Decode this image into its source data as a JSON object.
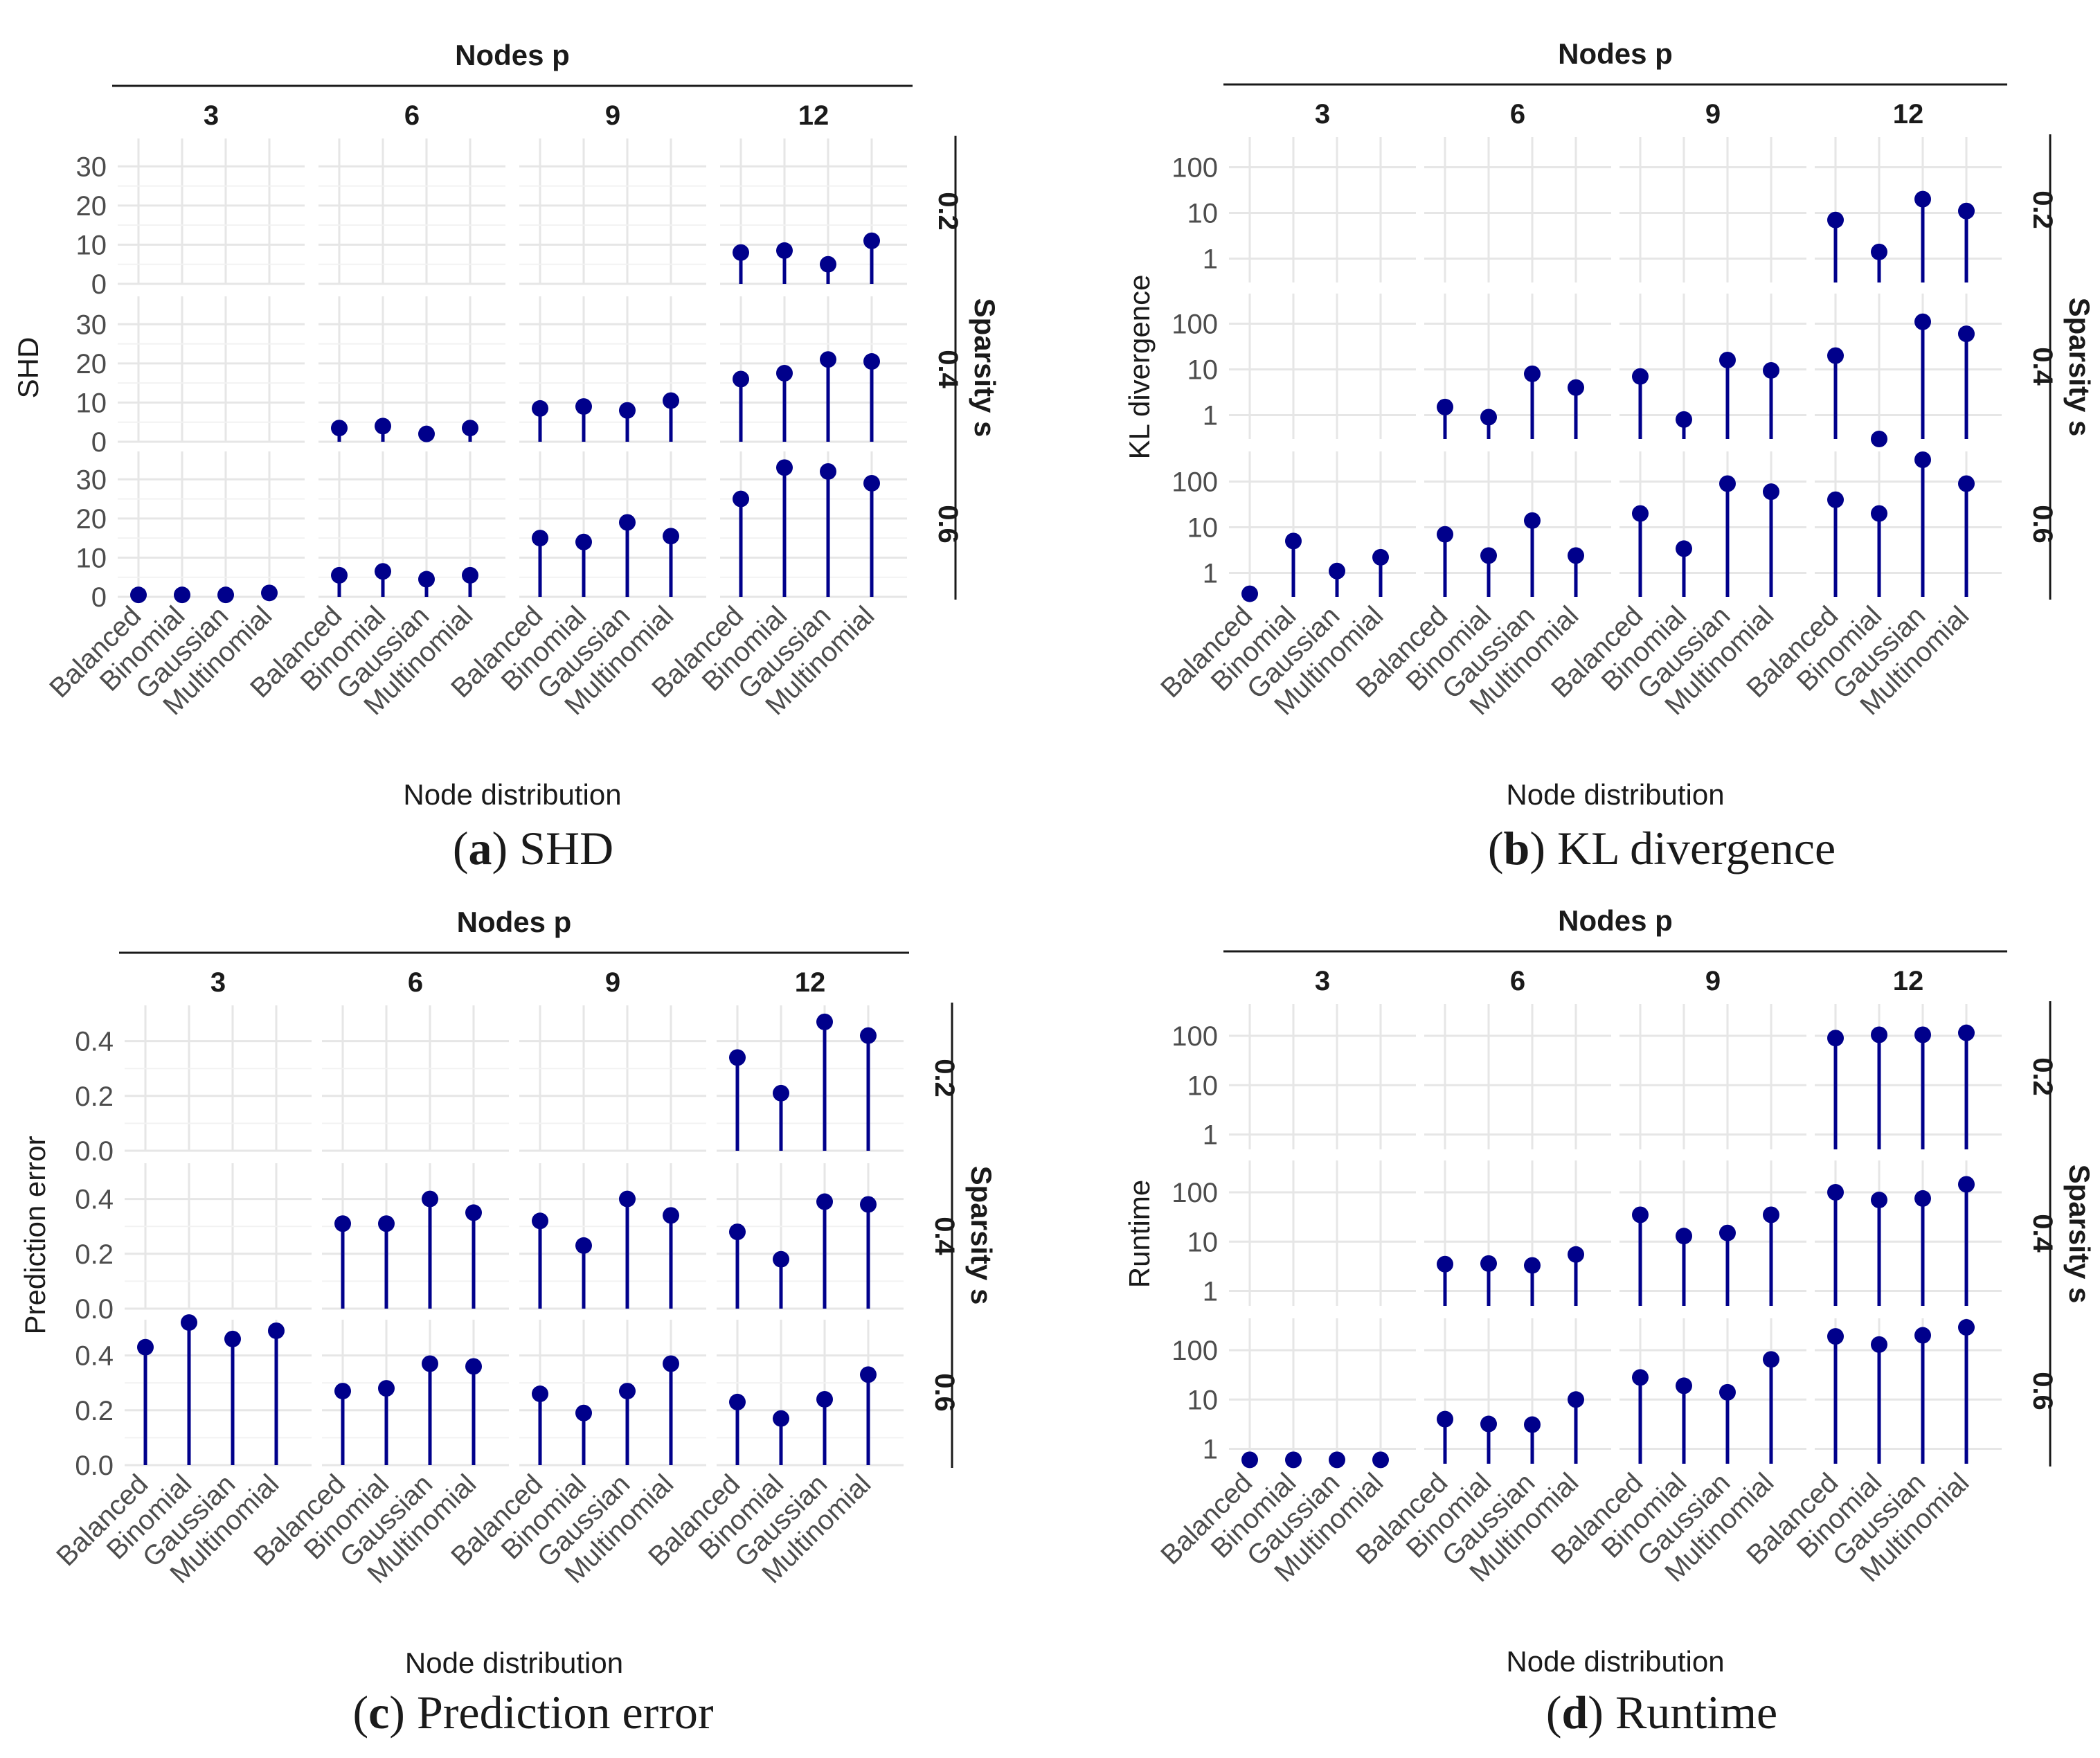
{
  "figure": {
    "caption_labels": [
      "a",
      "b",
      "c",
      "d"
    ],
    "accent_color": "#00008b"
  },
  "chart_data": [
    {
      "type": "lollipop",
      "panel": "a",
      "caption_label": "a",
      "caption": "SHD",
      "title": "SHD",
      "col_strip_title": "Nodes p",
      "row_strip_title": "Sparsity s",
      "columns": [
        "3",
        "6",
        "9",
        "12"
      ],
      "rows": [
        "0.2",
        "0.4",
        "0.6"
      ],
      "categories": [
        "Balanced",
        "Binomial",
        "Gaussian",
        "Multinomial"
      ],
      "xlabel": "Node distribution",
      "ylabel": "SHD",
      "yscale": "linear",
      "ylim": [
        0,
        35
      ],
      "yticks": [
        0,
        10,
        20,
        30
      ],
      "yticklabels": [
        "0",
        "10",
        "20",
        "30"
      ],
      "values": [
        [
          null,
          null,
          null,
          [
            8,
            8.5,
            5,
            11
          ]
        ],
        [
          null,
          [
            3.5,
            4,
            2,
            3.5
          ],
          [
            8.5,
            9,
            8,
            10.5
          ],
          [
            16,
            17.5,
            21,
            20.5
          ]
        ],
        [
          [
            0.5,
            0.5,
            0.5,
            1
          ],
          [
            5.5,
            6.5,
            4.5,
            5.5
          ],
          [
            15,
            14,
            19,
            15.5
          ],
          [
            25,
            33,
            32,
            29
          ]
        ]
      ]
    },
    {
      "type": "lollipop",
      "panel": "b",
      "caption_label": "b",
      "caption": "KL divergence",
      "title": "KL divergence",
      "col_strip_title": "Nodes p",
      "row_strip_title": "Sparsity s",
      "columns": [
        "3",
        "6",
        "9",
        "12"
      ],
      "rows": [
        "0.2",
        "0.4",
        "0.6"
      ],
      "categories": [
        "Balanced",
        "Binomial",
        "Gaussian",
        "Multinomial"
      ],
      "xlabel": "Node distribution",
      "ylabel": "KL divergence",
      "yscale": "log10",
      "ylim": [
        0.3,
        300
      ],
      "yticks": [
        1,
        10,
        100
      ],
      "yticklabels": [
        "1",
        "10",
        "100"
      ],
      "values": [
        [
          null,
          null,
          null,
          [
            7,
            1.4,
            20,
            11
          ]
        ],
        [
          null,
          [
            1.5,
            0.9,
            8,
            4
          ],
          [
            7,
            0.8,
            16,
            9.5
          ],
          [
            20,
            0.3,
            110,
            60
          ]
        ],
        [
          [
            0.35,
            5,
            1.1,
            2.2
          ],
          [
            7,
            2.4,
            14,
            2.4
          ],
          [
            20,
            3.4,
            90,
            60
          ],
          [
            40,
            20,
            300,
            90
          ]
        ]
      ]
    },
    {
      "type": "lollipop",
      "panel": "c",
      "caption_label": "c",
      "caption": "Prediction error",
      "title": "Prediction error",
      "col_strip_title": "Nodes p",
      "row_strip_title": "Sparsity s",
      "columns": [
        "3",
        "6",
        "9",
        "12"
      ],
      "rows": [
        "0.2",
        "0.4",
        "0.6"
      ],
      "categories": [
        "Balanced",
        "Binomial",
        "Gaussian",
        "Multinomial"
      ],
      "xlabel": "Node distribution",
      "ylabel": "Prediction error",
      "yscale": "linear",
      "ylim": [
        0,
        0.5
      ],
      "yticks": [
        0,
        0.2,
        0.4
      ],
      "yticklabels": [
        "0.0",
        "0.2",
        "0.4"
      ],
      "values": [
        [
          null,
          null,
          null,
          [
            0.34,
            0.21,
            0.47,
            0.42
          ]
        ],
        [
          null,
          [
            0.31,
            0.31,
            0.4,
            0.35
          ],
          [
            0.32,
            0.23,
            0.4,
            0.34
          ],
          [
            0.28,
            0.18,
            0.39,
            0.38
          ]
        ],
        [
          [
            0.43,
            0.52,
            0.46,
            0.49
          ],
          [
            0.27,
            0.28,
            0.37,
            0.36
          ],
          [
            0.26,
            0.19,
            0.27,
            0.37
          ],
          [
            0.23,
            0.17,
            0.24,
            0.33
          ]
        ]
      ]
    },
    {
      "type": "lollipop",
      "panel": "d",
      "caption_label": "d",
      "caption": "Runtime",
      "title": "Runtime",
      "col_strip_title": "Nodes p",
      "row_strip_title": "Sparsity s",
      "columns": [
        "3",
        "6",
        "9",
        "12"
      ],
      "rows": [
        "0.2",
        "0.4",
        "0.6"
      ],
      "categories": [
        "Balanced",
        "Binomial",
        "Gaussian",
        "Multinomial"
      ],
      "xlabel": "Node distribution",
      "ylabel": "Runtime",
      "yscale": "log10",
      "ylim": [
        0.5,
        300
      ],
      "yticks": [
        1,
        10,
        100
      ],
      "yticklabels": [
        "1",
        "10",
        "100"
      ],
      "values": [
        [
          null,
          null,
          null,
          [
            90,
            105,
            105,
            115
          ]
        ],
        [
          null,
          [
            3.5,
            3.6,
            3.3,
            5.5
          ],
          [
            35,
            13,
            15,
            35
          ],
          [
            100,
            70,
            75,
            145
          ]
        ],
        [
          [
            0.6,
            0.6,
            0.6,
            0.6
          ],
          [
            4,
            3.2,
            3.1,
            10
          ],
          [
            28,
            19,
            14,
            65
          ],
          [
            190,
            130,
            200,
            290
          ]
        ]
      ]
    }
  ]
}
